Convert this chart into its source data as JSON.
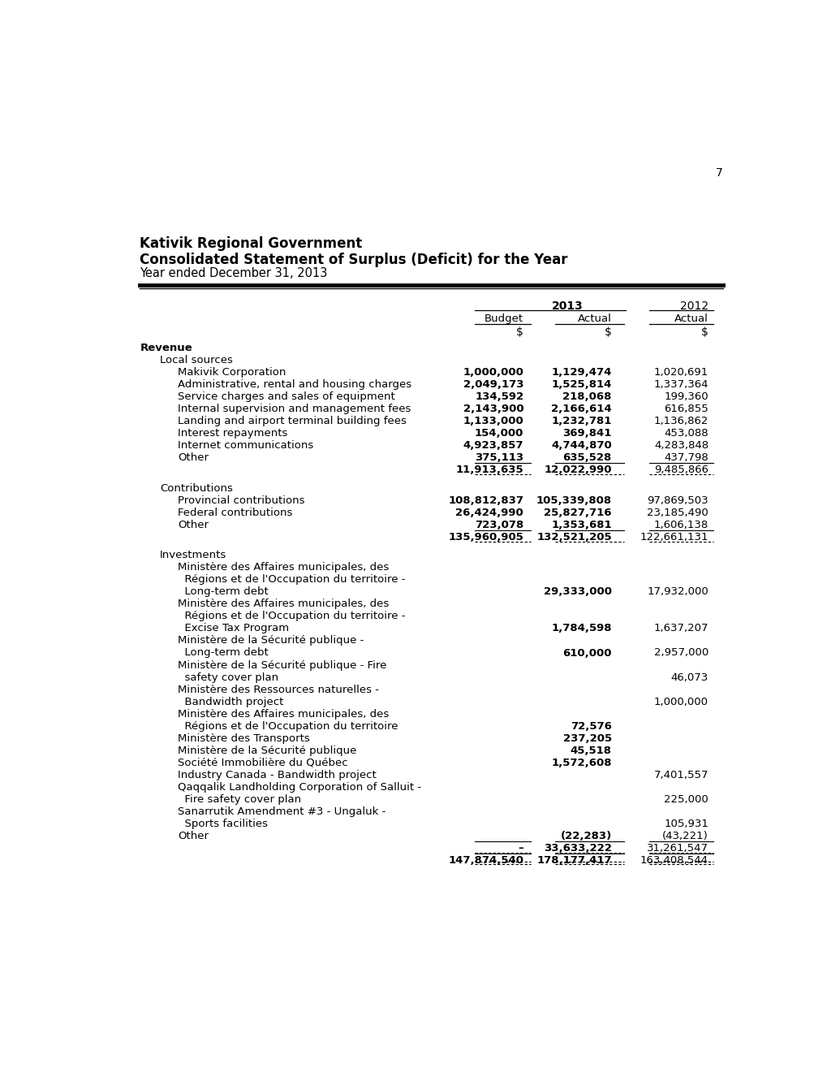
{
  "page_number": "7",
  "title_line1": "Kativik Regional Government",
  "title_line2": "Consolidated Statement of Surplus (Deficit) for the Year",
  "title_line3": "Year ended December 31, 2013",
  "rows": [
    {
      "label": "Revenue",
      "level": 0,
      "bold": true,
      "budget": "",
      "actual": "",
      "actual2012": "",
      "spacer_after": false
    },
    {
      "label": "Local sources",
      "level": 1,
      "bold": false,
      "budget": "",
      "actual": "",
      "actual2012": "",
      "spacer_after": false
    },
    {
      "label": "Makivik Corporation",
      "level": 2,
      "bold": false,
      "budget": "1,000,000",
      "actual": "1,129,474",
      "actual2012": "1,020,691",
      "spacer_after": false
    },
    {
      "label": "Administrative, rental and housing charges",
      "level": 2,
      "bold": false,
      "budget": "2,049,173",
      "actual": "1,525,814",
      "actual2012": "1,337,364",
      "spacer_after": false
    },
    {
      "label": "Service charges and sales of equipment",
      "level": 2,
      "bold": false,
      "budget": "134,592",
      "actual": "218,068",
      "actual2012": "199,360",
      "spacer_after": false
    },
    {
      "label": "Internal supervision and management fees",
      "level": 2,
      "bold": false,
      "budget": "2,143,900",
      "actual": "2,166,614",
      "actual2012": "616,855",
      "spacer_after": false
    },
    {
      "label": "Landing and airport terminal building fees",
      "level": 2,
      "bold": false,
      "budget": "1,133,000",
      "actual": "1,232,781",
      "actual2012": "1,136,862",
      "spacer_after": false
    },
    {
      "label": "Interest repayments",
      "level": 2,
      "bold": false,
      "budget": "154,000",
      "actual": "369,841",
      "actual2012": "453,088",
      "spacer_after": false
    },
    {
      "label": "Internet communications",
      "level": 2,
      "bold": false,
      "budget": "4,923,857",
      "actual": "4,744,870",
      "actual2012": "4,283,848",
      "spacer_after": false
    },
    {
      "label": "Other",
      "level": 2,
      "bold": false,
      "budget": "375,113",
      "actual": "635,528",
      "actual2012": "437,798",
      "spacer_after": false
    },
    {
      "label": "",
      "level": 2,
      "bold": true,
      "budget": "11,913,635",
      "actual": "12,022,990",
      "actual2012": "9,485,866",
      "is_subtotal": true,
      "spacer_after": true
    },
    {
      "label": "Contributions",
      "level": 1,
      "bold": false,
      "budget": "",
      "actual": "",
      "actual2012": "",
      "spacer_after": false
    },
    {
      "label": "Provincial contributions",
      "level": 2,
      "bold": false,
      "budget": "108,812,837",
      "actual": "105,339,808",
      "actual2012": "97,869,503",
      "spacer_after": false
    },
    {
      "label": "Federal contributions",
      "level": 2,
      "bold": false,
      "budget": "26,424,990",
      "actual": "25,827,716",
      "actual2012": "23,185,490",
      "spacer_after": false
    },
    {
      "label": "Other",
      "level": 2,
      "bold": false,
      "budget": "723,078",
      "actual": "1,353,681",
      "actual2012": "1,606,138",
      "spacer_after": false
    },
    {
      "label": "",
      "level": 2,
      "bold": true,
      "budget": "135,960,905",
      "actual": "132,521,205",
      "actual2012": "122,661,131",
      "is_subtotal": true,
      "spacer_after": true
    },
    {
      "label": "Investments",
      "level": 1,
      "bold": false,
      "budget": "",
      "actual": "",
      "actual2012": "",
      "spacer_after": false
    },
    {
      "label": "Ministère des Affaires municipales, des",
      "level": 2,
      "bold": false,
      "budget": "",
      "actual": "",
      "actual2012": "",
      "spacer_after": false
    },
    {
      "label": "  Régions et de l'Occupation du territoire -",
      "level": 2,
      "bold": false,
      "budget": "",
      "actual": "",
      "actual2012": "",
      "spacer_after": false
    },
    {
      "label": "  Long-term debt",
      "level": 2,
      "bold": false,
      "budget": "",
      "actual": "29,333,000",
      "actual2012": "17,932,000",
      "spacer_after": false
    },
    {
      "label": "Ministère des Affaires municipales, des",
      "level": 2,
      "bold": false,
      "budget": "",
      "actual": "",
      "actual2012": "",
      "spacer_after": false
    },
    {
      "label": "  Régions et de l'Occupation du territoire -",
      "level": 2,
      "bold": false,
      "budget": "",
      "actual": "",
      "actual2012": "",
      "spacer_after": false
    },
    {
      "label": "  Excise Tax Program",
      "level": 2,
      "bold": false,
      "budget": "",
      "actual": "1,784,598",
      "actual2012": "1,637,207",
      "spacer_after": false
    },
    {
      "label": "Ministère de la Sécurité publique -",
      "level": 2,
      "bold": false,
      "budget": "",
      "actual": "",
      "actual2012": "",
      "spacer_after": false
    },
    {
      "label": "  Long-term debt",
      "level": 2,
      "bold": false,
      "budget": "",
      "actual": "610,000",
      "actual2012": "2,957,000",
      "spacer_after": false
    },
    {
      "label": "Ministère de la Sécurité publique - Fire",
      "level": 2,
      "bold": false,
      "budget": "",
      "actual": "",
      "actual2012": "",
      "spacer_after": false
    },
    {
      "label": "  safety cover plan",
      "level": 2,
      "bold": false,
      "budget": "",
      "actual": "",
      "actual2012": "46,073",
      "spacer_after": false
    },
    {
      "label": "Ministère des Ressources naturelles -",
      "level": 2,
      "bold": false,
      "budget": "",
      "actual": "",
      "actual2012": "",
      "spacer_after": false
    },
    {
      "label": "  Bandwidth project",
      "level": 2,
      "bold": false,
      "budget": "",
      "actual": "",
      "actual2012": "1,000,000",
      "spacer_after": false
    },
    {
      "label": "Ministère des Affaires municipales, des",
      "level": 2,
      "bold": false,
      "budget": "",
      "actual": "",
      "actual2012": "",
      "spacer_after": false
    },
    {
      "label": "  Régions et de l'Occupation du territoire",
      "level": 2,
      "bold": false,
      "budget": "",
      "actual": "72,576",
      "actual2012": "",
      "spacer_after": false
    },
    {
      "label": "Ministère des Transports",
      "level": 2,
      "bold": false,
      "budget": "",
      "actual": "237,205",
      "actual2012": "",
      "spacer_after": false
    },
    {
      "label": "Ministère de la Sécurité publique",
      "level": 2,
      "bold": false,
      "budget": "",
      "actual": "45,518",
      "actual2012": "",
      "spacer_after": false
    },
    {
      "label": "Société Immobilière du Québec",
      "level": 2,
      "bold": false,
      "budget": "",
      "actual": "1,572,608",
      "actual2012": "",
      "spacer_after": false
    },
    {
      "label": "Industry Canada - Bandwidth project",
      "level": 2,
      "bold": false,
      "budget": "",
      "actual": "",
      "actual2012": "7,401,557",
      "spacer_after": false
    },
    {
      "label": "Qaqqalik Landholding Corporation of Salluit -",
      "level": 2,
      "bold": false,
      "budget": "",
      "actual": "",
      "actual2012": "",
      "spacer_after": false
    },
    {
      "label": "  Fire safety cover plan",
      "level": 2,
      "bold": false,
      "budget": "",
      "actual": "",
      "actual2012": "225,000",
      "spacer_after": false
    },
    {
      "label": "Sanarrutik Amendment #3 - Ungaluk -",
      "level": 2,
      "bold": false,
      "budget": "",
      "actual": "",
      "actual2012": "",
      "spacer_after": false
    },
    {
      "label": "  Sports facilities",
      "level": 2,
      "bold": false,
      "budget": "",
      "actual": "",
      "actual2012": "105,931",
      "spacer_after": false
    },
    {
      "label": "Other",
      "level": 2,
      "bold": false,
      "budget": "",
      "actual": "(22,283)",
      "actual2012": "(43,221)",
      "spacer_after": false
    },
    {
      "label": "",
      "level": 2,
      "bold": true,
      "budget": "–",
      "actual": "33,633,222",
      "actual2012": "31,261,547",
      "is_subtotal": true,
      "spacer_after": false
    },
    {
      "label": "",
      "level": 2,
      "bold": true,
      "budget": "147,874,540",
      "actual": "178,177,417",
      "actual2012": "163,408,544",
      "is_grandtotal": true,
      "spacer_after": false
    }
  ]
}
